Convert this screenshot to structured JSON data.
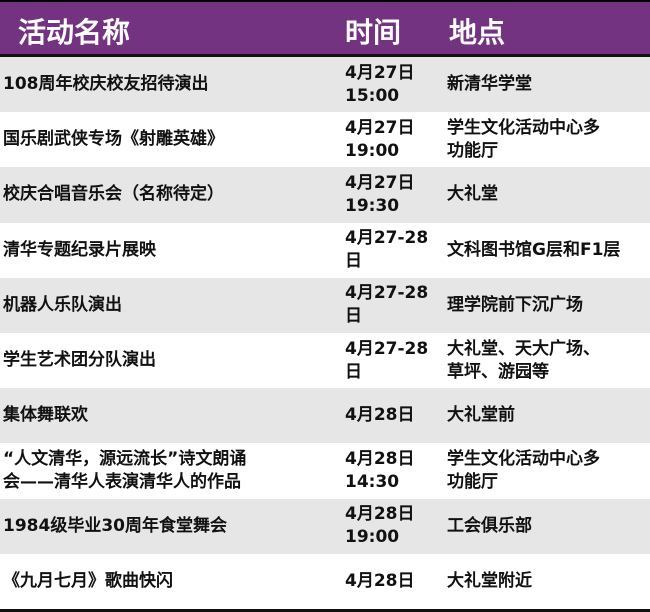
{
  "colors": {
    "header_bg": "#733380",
    "alt_row_bg": "#e6e6e6"
  },
  "header": {
    "name": "活动名称",
    "time": "时间",
    "place": "地点"
  },
  "rows": [
    {
      "name": "108周年校庆校友招待演出",
      "time": "4月27日\n15:00",
      "place": "新清华学堂"
    },
    {
      "name": "国乐剧武侠专场《射雕英雄》",
      "time": "4月27日\n19:00",
      "place": "学生文化活动中心多\n功能厅"
    },
    {
      "name": "校庆合唱音乐会（名称待定）",
      "time": "4月27日\n19:30",
      "place": "大礼堂"
    },
    {
      "name": "清华专题纪录片展映",
      "time": "4月27-28\n日",
      "place": "文科图书馆G层和F1层"
    },
    {
      "name": "机器人乐队演出",
      "time": "4月27-28\n日",
      "place": "理学院前下沉广场"
    },
    {
      "name": "学生艺术团分队演出",
      "time": "4月27-28\n日",
      "place": "大礼堂、天大广场、\n草坪、游园等"
    },
    {
      "name": "集体舞联欢",
      "time": "4月28日",
      "place": "大礼堂前"
    },
    {
      "name": "“人文清华，源远流长”诗文朗诵\n会——清华人表演清华人的作品",
      "time": "4月28日\n14:30",
      "place": "学生文化活动中心多\n功能厅"
    },
    {
      "name": "1984级毕业30周年食堂舞会",
      "time": "4月28日\n19:00",
      "place": "工会俱乐部"
    },
    {
      "name": "《九月七月》歌曲快闪",
      "time": "4月28日",
      "place": "大礼堂附近"
    }
  ]
}
